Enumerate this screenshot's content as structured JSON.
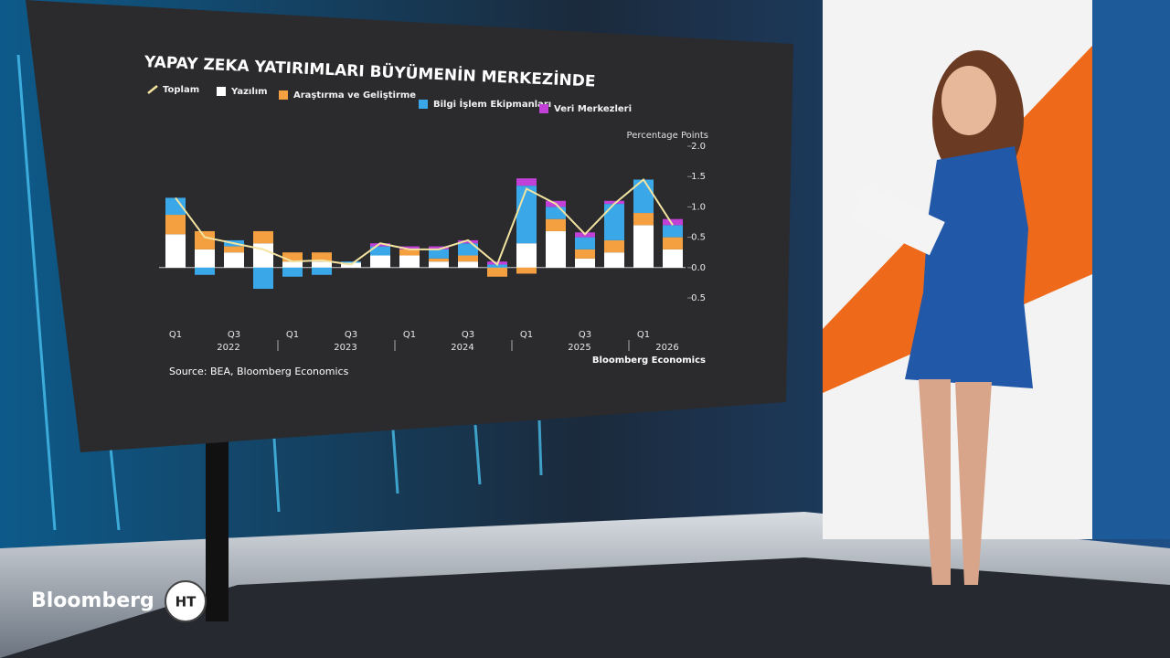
{
  "chart_data": {
    "type": "bar",
    "stacked": true,
    "title": "YAPAY ZEKA YATIRIMLARI BÜYÜMENİN MERKEZİNDE",
    "y_axis_label": "Percentage Points",
    "source": "Source: BEA, Bloomberg Economics",
    "credit": "Bloomberg Economics",
    "categories": [
      "Q1",
      null,
      "Q3",
      null,
      "Q1",
      null,
      "Q3",
      null,
      "Q1",
      null,
      "Q3",
      null,
      "Q1",
      null,
      "Q3",
      null,
      "Q1",
      null
    ],
    "year_labels": [
      "2022",
      "2023",
      "2024",
      "2025",
      "2026"
    ],
    "ylim": [
      -0.5,
      2.0
    ],
    "yticks": [
      {
        "value": 2,
        "label": "2.0"
      },
      1.5,
      {
        "value": 1,
        "label": "1.0"
      },
      0.5,
      {
        "value": 0,
        "label": "0.0"
      },
      -0.5
    ],
    "series": [
      {
        "name": "Toplam",
        "type": "line",
        "color": "#f3e3a0",
        "values": [
          1.15,
          0.5,
          0.4,
          0.3,
          0.1,
          0.12,
          0.05,
          0.4,
          0.3,
          0.3,
          0.45,
          0.05,
          1.3,
          1.05,
          0.55,
          1.05,
          1.45,
          0.7
        ]
      },
      {
        "name": "Yazılım",
        "type": "bar",
        "color": "#ffffff",
        "values": [
          0.55,
          0.3,
          0.25,
          0.4,
          0.1,
          0.1,
          0.08,
          0.2,
          0.2,
          0.1,
          0.1,
          0,
          0.4,
          0.6,
          0.15,
          0.25,
          0.7,
          0.3
        ]
      },
      {
        "name": "Araştırma ve Geliştirme",
        "type": "bar",
        "color": "#f5a040",
        "values": [
          0.32,
          0.3,
          0.1,
          0.2,
          0.15,
          0.15,
          0,
          0,
          0.1,
          0.05,
          0.1,
          -0.15,
          -0.1,
          0.2,
          0.15,
          0.2,
          0.2,
          0.2
        ]
      },
      {
        "name": "Bilgi İşlem Ekipmanları",
        "type": "bar",
        "color": "#3aa8e8",
        "values": [
          0.28,
          -0.12,
          0.1,
          -0.35,
          -0.15,
          -0.12,
          0.02,
          0.15,
          0,
          0.15,
          0.2,
          0.05,
          0.95,
          0.2,
          0.2,
          0.6,
          0.55,
          0.2
        ]
      },
      {
        "name": "Veri Merkezleri",
        "type": "bar",
        "color": "#c040d8",
        "values": [
          0,
          0,
          0,
          0,
          0,
          0,
          0,
          0.05,
          0.05,
          0.05,
          0.05,
          0.05,
          0.12,
          0.1,
          0.08,
          0.05,
          0,
          0.1
        ]
      }
    ]
  },
  "broadcast": {
    "channel": "Bloomberg",
    "logo_mark": "HT"
  }
}
